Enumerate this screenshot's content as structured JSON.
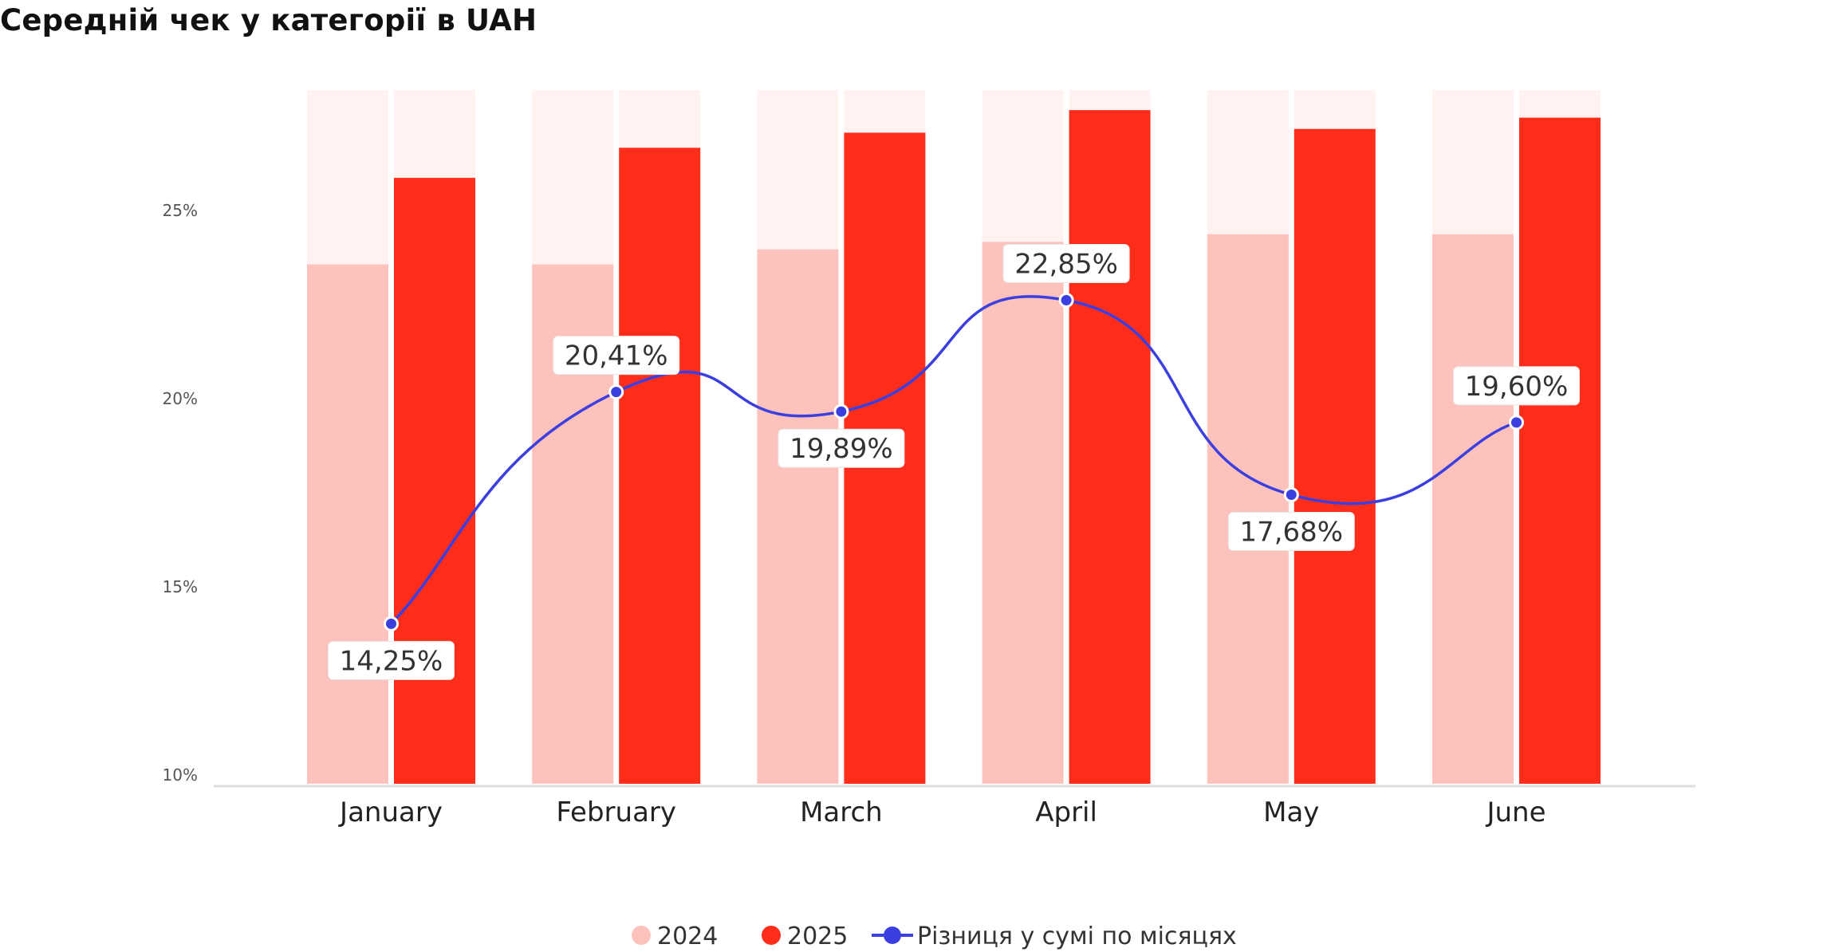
{
  "title": "Середній чек у категорії в UAH",
  "chart_data": {
    "type": "bar",
    "title": "Середній чек у категорії в UAH",
    "categories": [
      "January",
      "February",
      "March",
      "April",
      "May",
      "June"
    ],
    "yticks": [
      "10%",
      "15%",
      "20%",
      "25%"
    ],
    "ylim": [
      10,
      26.9
    ],
    "series": [
      {
        "name": "2024",
        "type": "bar",
        "color": "#FEC2BD",
        "values": [
          23.8,
          23.8,
          24.2,
          24.4,
          24.6,
          24.6
        ]
      },
      {
        "name": "2025",
        "type": "bar",
        "color": "#FF2D1A",
        "values": [
          26.1,
          26.9,
          27.3,
          27.9,
          27.4,
          27.7
        ]
      },
      {
        "name": "Різниця у сумі по місяцях",
        "type": "line",
        "color": "#3B3FE0",
        "values": [
          14.25,
          20.41,
          19.89,
          22.85,
          17.68,
          19.6
        ],
        "labels": [
          "14,25%",
          "20,41%",
          "19,89%",
          "22,85%",
          "17,68%",
          "19,60%"
        ]
      }
    ],
    "legend": [
      "2024",
      "2025",
      "Різниця у сумі по місяцях"
    ],
    "legend_position": "bottom-center",
    "background_band_color": "#FFF2F1",
    "axis_line_color": "#DDDDDD",
    "grid": false
  }
}
